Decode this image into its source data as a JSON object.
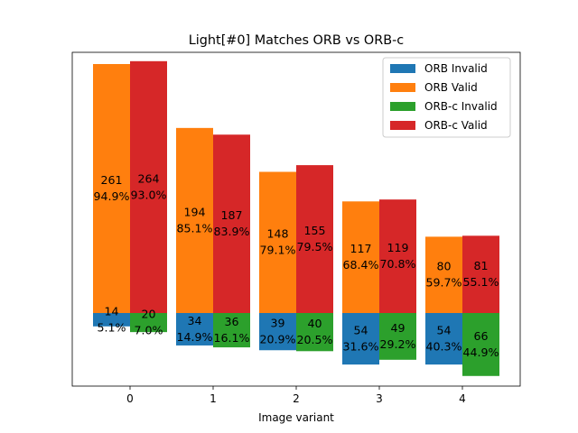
{
  "chart_data": {
    "type": "bar",
    "title": "Light[#0] Matches ORB vs ORB-c",
    "xlabel": "Image variant",
    "ylabel": "",
    "categories": [
      "0",
      "1",
      "2",
      "3",
      "4"
    ],
    "y_axis_visible": false,
    "ylim": [
      -66,
      264
    ],
    "grid": false,
    "legend_position": "top-right",
    "notes": "Invalid counts are drawn below the zero baseline; Valid counts above it. Each bar is labeled with count and percentage.",
    "series": [
      {
        "name": "ORB Invalid",
        "color": "#1f77b4",
        "values": [
          14,
          34,
          39,
          54,
          54
        ],
        "labels": [
          "14\n5.1%",
          "34\n14.9%",
          "39\n20.9%",
          "54\n31.6%",
          "54\n40.3%"
        ]
      },
      {
        "name": "ORB Valid",
        "color": "#ff7f0e",
        "values": [
          261,
          194,
          148,
          117,
          80
        ],
        "labels": [
          "261\n94.9%",
          "194\n85.1%",
          "148\n79.1%",
          "117\n68.4%",
          "80\n59.7%"
        ]
      },
      {
        "name": "ORB-c Invalid",
        "color": "#2ca02c",
        "values": [
          20,
          36,
          40,
          49,
          66
        ],
        "labels": [
          "20\n7.0%",
          "36\n16.1%",
          "40\n20.5%",
          "49\n29.2%",
          "66\n44.9%"
        ]
      },
      {
        "name": "ORB-c Valid",
        "color": "#d62728",
        "values": [
          264,
          187,
          155,
          119,
          81
        ],
        "labels": [
          "264\n93.0%",
          "187\n83.9%",
          "155\n79.5%",
          "119\n70.8%",
          "81\n55.1%"
        ]
      }
    ]
  }
}
